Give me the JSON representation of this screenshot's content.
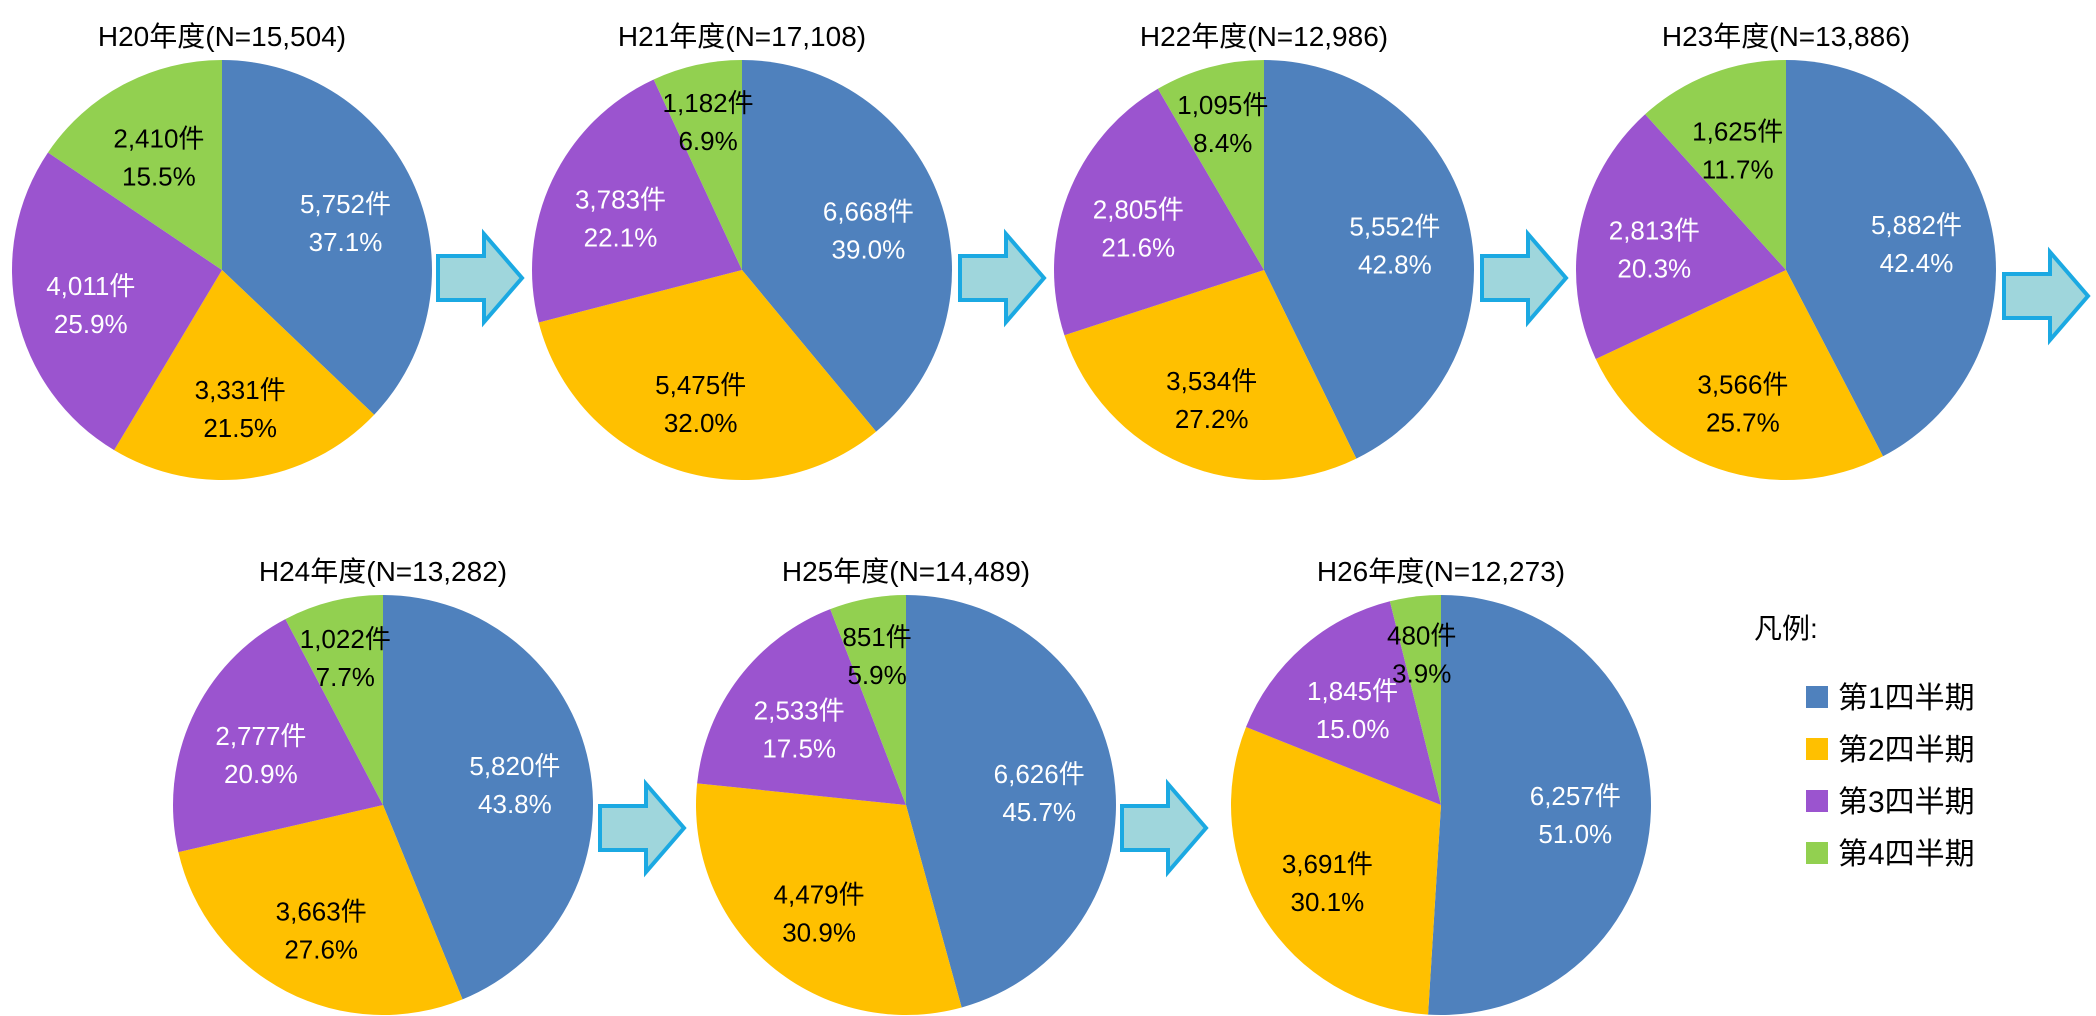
{
  "legend": {
    "title": "凡例:",
    "items": [
      {
        "label": "第1四半期",
        "color": "#4F81BD"
      },
      {
        "label": "第2四半期",
        "color": "#FFC000"
      },
      {
        "label": "第3四半期",
        "color": "#9B54CF"
      },
      {
        "label": "第4四半期",
        "color": "#92D050"
      }
    ]
  },
  "chart_data": [
    {
      "type": "pie",
      "title": "H20年度(N=15,504)",
      "categories": [
        "第1四半期",
        "第2四半期",
        "第3四半期",
        "第4四半期"
      ],
      "values": [
        5752,
        3331,
        4011,
        2410
      ],
      "value_labels": [
        "5,752件",
        "3,331件",
        "4,011件",
        "2,410件"
      ],
      "percent_labels": [
        "37.1%",
        "21.5%",
        "25.9%",
        "15.5%"
      ]
    },
    {
      "type": "pie",
      "title": "H21年度(N=17,108)",
      "categories": [
        "第1四半期",
        "第2四半期",
        "第3四半期",
        "第4四半期"
      ],
      "values": [
        6668,
        5475,
        3783,
        1182
      ],
      "value_labels": [
        "6,668件",
        "5,475件",
        "3,783件",
        "1,182件"
      ],
      "percent_labels": [
        "39.0%",
        "32.0%",
        "22.1%",
        "6.9%"
      ]
    },
    {
      "type": "pie",
      "title": "H22年度(N=12,986)",
      "categories": [
        "第1四半期",
        "第2四半期",
        "第3四半期",
        "第4四半期"
      ],
      "values": [
        5552,
        3534,
        2805,
        1095
      ],
      "value_labels": [
        "5,552件",
        "3,534件",
        "2,805件",
        "1,095件"
      ],
      "percent_labels": [
        "42.8%",
        "27.2%",
        "21.6%",
        "8.4%"
      ]
    },
    {
      "type": "pie",
      "title": "H23年度(N=13,886)",
      "categories": [
        "第1四半期",
        "第2四半期",
        "第3四半期",
        "第4四半期"
      ],
      "values": [
        5882,
        3566,
        2813,
        1625
      ],
      "value_labels": [
        "5,882件",
        "3,566件",
        "2,813件",
        "1,625件"
      ],
      "percent_labels": [
        "42.4%",
        "25.7%",
        "20.3%",
        "11.7%"
      ]
    },
    {
      "type": "pie",
      "title": "H24年度(N=13,282)",
      "categories": [
        "第1四半期",
        "第2四半期",
        "第3四半期",
        "第4四半期"
      ],
      "values": [
        5820,
        3663,
        2777,
        1022
      ],
      "value_labels": [
        "5,820件",
        "3,663件",
        "2,777件",
        "1,022件"
      ],
      "percent_labels": [
        "43.8%",
        "27.6%",
        "20.9%",
        "7.7%"
      ]
    },
    {
      "type": "pie",
      "title": "H25年度(N=14,489)",
      "categories": [
        "第1四半期",
        "第2四半期",
        "第3四半期",
        "第4四半期"
      ],
      "values": [
        6626,
        4479,
        2533,
        851
      ],
      "value_labels": [
        "6,626件",
        "4,479件",
        "2,533件",
        "851件"
      ],
      "percent_labels": [
        "45.7%",
        "30.9%",
        "17.5%",
        "5.9%"
      ]
    },
    {
      "type": "pie",
      "title": "H26年度(N=12,273)",
      "categories": [
        "第1四半期",
        "第2四半期",
        "第3四半期",
        "第4四半期"
      ],
      "values": [
        6257,
        3691,
        1845,
        480
      ],
      "value_labels": [
        "6,257件",
        "3,691件",
        "1,845件",
        "480件"
      ],
      "percent_labels": [
        "51.0%",
        "30.1%",
        "15.0%",
        "3.9%"
      ]
    }
  ]
}
